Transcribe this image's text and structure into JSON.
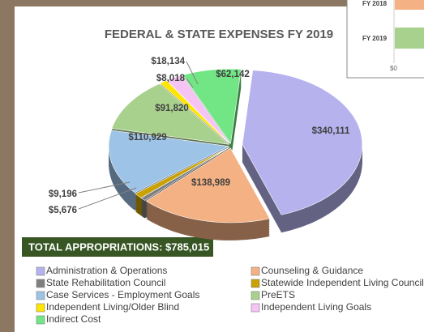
{
  "chart_data": {
    "type": "pie",
    "title": "FEDERAL & STATE EXPENSES FY 2019",
    "subtitle": "TOTAL APPROPRIATIONS: $785,015",
    "categories": [
      "Administration & Operations",
      "Counseling & Guidance",
      "State Rehabilitation Council",
      "Statewide Independent Living Council",
      "Case Services - Employment Goals",
      "PreETS",
      "Independent Living/Older Blind",
      "Independent Living Goals",
      "Indirect Cost"
    ],
    "values": [
      340111,
      138989,
      5676,
      9196,
      110929,
      91820,
      8018,
      18134,
      62142
    ],
    "value_labels": [
      "$340,111",
      "$138,989",
      "$5,676",
      "$9,196",
      "$110,929",
      "$91,820",
      "$8,018",
      "$18,134",
      "$62,142"
    ],
    "colors": [
      "#b6b2ee",
      "#f4b183",
      "#7f7f7f",
      "#c9a100",
      "#9dc3e6",
      "#a9d18e",
      "#ffe600",
      "#f6c4f4",
      "#72e685"
    ],
    "legend": "bottom"
  },
  "inset": {
    "labels": [
      "FY 2018",
      "FY 2019"
    ],
    "axis_label": "$0"
  }
}
